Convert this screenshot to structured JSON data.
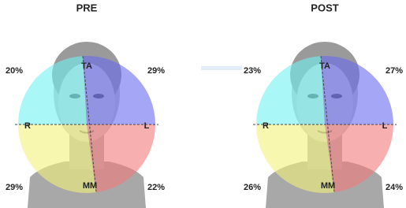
{
  "panels": [
    {
      "title": "PRE",
      "labels": {
        "top": "TA",
        "bottom": "MM",
        "left": "R",
        "right": "L"
      },
      "percentages": {
        "top_left": "20%",
        "top_right": "29%",
        "bottom_left": "29%",
        "bottom_right": "22%"
      }
    },
    {
      "title": "POST",
      "labels": {
        "top": "TA",
        "bottom": "MM",
        "left": "R",
        "right": "L"
      },
      "percentages": {
        "top_left": "23%",
        "top_right": "27%",
        "bottom_left": "26%",
        "bottom_right": "24%"
      }
    }
  ]
}
